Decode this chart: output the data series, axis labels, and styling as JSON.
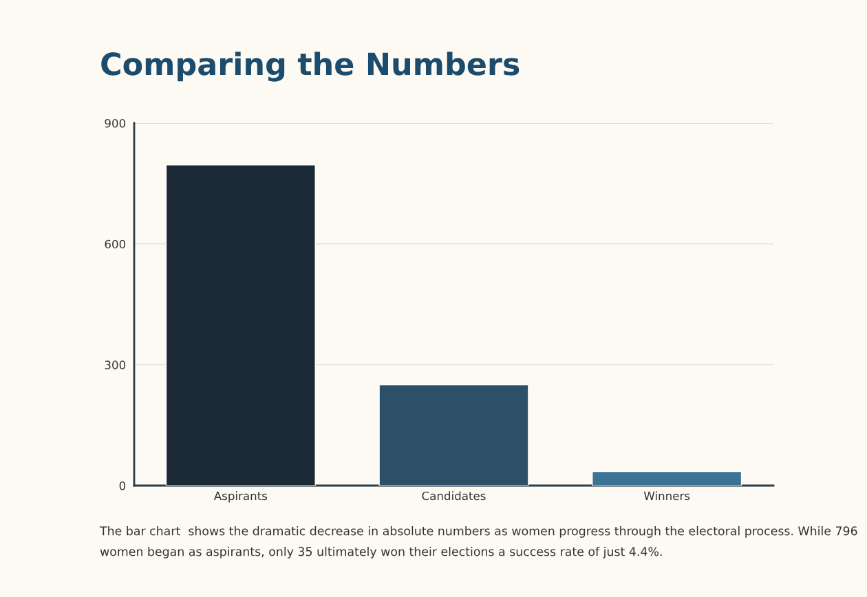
{
  "chart_data": {
    "type": "bar",
    "title": "Comparing the Numbers",
    "categories": [
      "Aspirants",
      "Candidates",
      "Winners"
    ],
    "values": [
      796,
      250,
      35
    ],
    "colors": [
      "#1a2935",
      "#2c5068",
      "#3c7395"
    ],
    "ylim": [
      0,
      900
    ],
    "yticks": [
      0,
      300,
      600,
      900
    ],
    "grid": "y",
    "annotations": [
      "The bar chart  shows the dramatic decrease in absolute numbers as women progress through the electoral process. While 796 women began as aspirants, only 35 ultimately won their elections a success rate of just 4.4%."
    ]
  }
}
